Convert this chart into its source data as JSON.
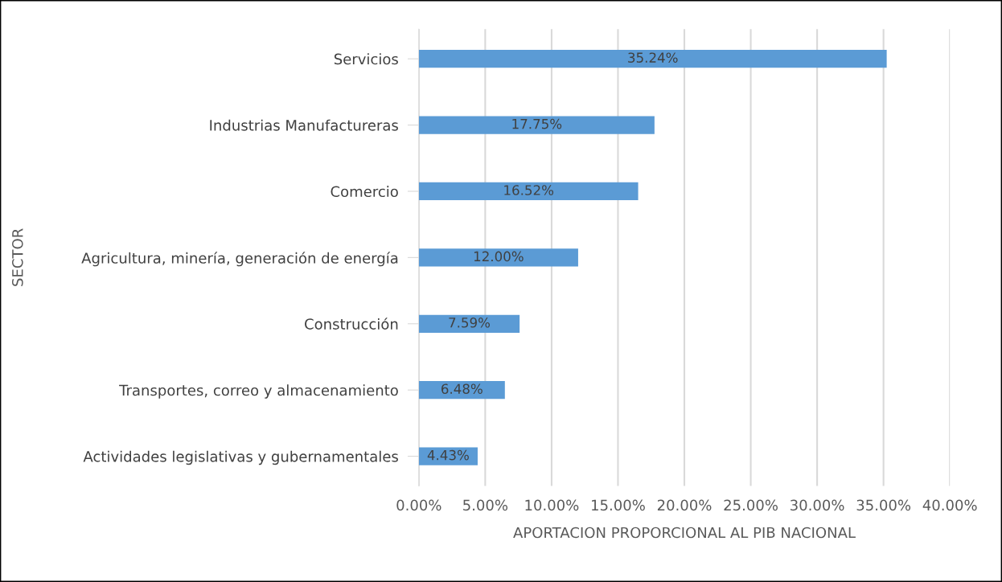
{
  "chart_data": {
    "type": "bar",
    "orientation": "horizontal",
    "xlabel": "APORTACION PROPORCIONAL AL PIB NACIONAL",
    "ylabel": "SECTOR",
    "categories": [
      "Servicios",
      "Industrias Manufactureras",
      "Comercio",
      "Agricultura, minería, generación de energía",
      "Construcción",
      "Transportes, correo y almacenamiento",
      "Actividades legislativas y gubernamentales"
    ],
    "values": [
      35.24,
      17.75,
      16.52,
      12.0,
      7.59,
      6.48,
      4.43
    ],
    "value_labels": [
      "35.24%",
      "17.75%",
      "16.52%",
      "12.00%",
      "7.59%",
      "6.48%",
      "4.43%"
    ],
    "color": "#5b9bd5",
    "xlim": [
      0,
      40
    ],
    "xticks": [
      {
        "value": 0,
        "label": "0.00%"
      },
      {
        "value": 5,
        "label": "5.00%"
      },
      {
        "value": 10,
        "label": "10.00%"
      },
      {
        "value": 15,
        "label": "15.00%"
      },
      {
        "value": 20,
        "label": "20.00%"
      },
      {
        "value": 25,
        "label": "25.00%"
      },
      {
        "value": 30,
        "label": "30.00%"
      },
      {
        "value": 35,
        "label": "35.00%"
      },
      {
        "value": 40,
        "label": "40.00%"
      }
    ],
    "grid": "x"
  }
}
